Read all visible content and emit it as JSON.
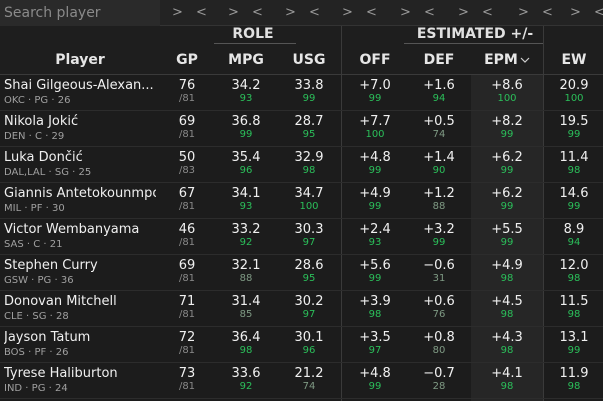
{
  "search": {
    "placeholder": "Search player"
  },
  "filter_arrows": [
    ">",
    "<"
  ],
  "groups": {
    "role": "ROLE",
    "estimated": "ESTIMATED +/-"
  },
  "columns": {
    "player": "Player",
    "gp": "GP",
    "mpg": "MPG",
    "usg": "USG",
    "off": "OFF",
    "def": "DEF",
    "epm": "EPM",
    "ew": "EW"
  },
  "sort_indicator_icon": "chevron-down-icon",
  "players": [
    {
      "name": "Shai Gilgeous-Alexan...",
      "meta": "OKC · PG · 26",
      "gp": "76",
      "gp_sub": "/81",
      "mpg": "34.2",
      "mpg_pct": "93",
      "usg": "33.8",
      "usg_pct": "99",
      "off": "+7.0",
      "off_pct": "99",
      "def": "+1.6",
      "def_pct": "94",
      "epm": "+8.6",
      "epm_pct": "100",
      "ew": "20.9",
      "ew_pct": "100"
    },
    {
      "name": "Nikola Jokić",
      "meta": "DEN · C · 29",
      "gp": "69",
      "gp_sub": "/81",
      "mpg": "36.8",
      "mpg_pct": "99",
      "usg": "28.7",
      "usg_pct": "95",
      "off": "+7.7",
      "off_pct": "100",
      "def": "+0.5",
      "def_pct": "74",
      "epm": "+8.2",
      "epm_pct": "99",
      "ew": "19.5",
      "ew_pct": "99"
    },
    {
      "name": "Luka Dončić",
      "meta": "DAL,LAL · SG · 25",
      "gp": "50",
      "gp_sub": "/83",
      "mpg": "35.4",
      "mpg_pct": "96",
      "usg": "32.9",
      "usg_pct": "98",
      "off": "+4.8",
      "off_pct": "99",
      "def": "+1.4",
      "def_pct": "90",
      "epm": "+6.2",
      "epm_pct": "99",
      "ew": "11.4",
      "ew_pct": "98"
    },
    {
      "name": "Giannis Antetokounmpo",
      "meta": "MIL · PF · 30",
      "gp": "67",
      "gp_sub": "/81",
      "mpg": "34.1",
      "mpg_pct": "93",
      "usg": "34.7",
      "usg_pct": "100",
      "off": "+4.9",
      "off_pct": "99",
      "def": "+1.2",
      "def_pct": "88",
      "epm": "+6.2",
      "epm_pct": "99",
      "ew": "14.6",
      "ew_pct": "99"
    },
    {
      "name": "Victor Wembanyama",
      "meta": "SAS · C · 21",
      "gp": "46",
      "gp_sub": "/81",
      "mpg": "33.2",
      "mpg_pct": "92",
      "usg": "30.3",
      "usg_pct": "97",
      "off": "+2.4",
      "off_pct": "93",
      "def": "+3.2",
      "def_pct": "99",
      "epm": "+5.5",
      "epm_pct": "99",
      "ew": "8.9",
      "ew_pct": "94"
    },
    {
      "name": "Stephen Curry",
      "meta": "GSW · PG · 36",
      "gp": "69",
      "gp_sub": "/81",
      "mpg": "32.1",
      "mpg_pct": "88",
      "usg": "28.6",
      "usg_pct": "95",
      "off": "+5.6",
      "off_pct": "99",
      "def": "−0.6",
      "def_pct": "31",
      "epm": "+4.9",
      "epm_pct": "98",
      "ew": "12.0",
      "ew_pct": "98"
    },
    {
      "name": "Donovan Mitchell",
      "meta": "CLE · SG · 28",
      "gp": "71",
      "gp_sub": "/81",
      "mpg": "31.4",
      "mpg_pct": "85",
      "usg": "30.2",
      "usg_pct": "97",
      "off": "+3.9",
      "off_pct": "98",
      "def": "+0.6",
      "def_pct": "76",
      "epm": "+4.5",
      "epm_pct": "98",
      "ew": "11.5",
      "ew_pct": "98"
    },
    {
      "name": "Jayson Tatum",
      "meta": "BOS · PF · 26",
      "gp": "72",
      "gp_sub": "/81",
      "mpg": "36.4",
      "mpg_pct": "98",
      "usg": "30.1",
      "usg_pct": "96",
      "off": "+3.5",
      "off_pct": "97",
      "def": "+0.8",
      "def_pct": "80",
      "epm": "+4.3",
      "epm_pct": "98",
      "ew": "13.1",
      "ew_pct": "99"
    },
    {
      "name": "Tyrese Haliburton",
      "meta": "IND · PG · 24",
      "gp": "73",
      "gp_sub": "/81",
      "mpg": "33.6",
      "mpg_pct": "92",
      "usg": "21.2",
      "usg_pct": "74",
      "off": "+4.8",
      "off_pct": "99",
      "def": "−0.7",
      "def_pct": "28",
      "epm": "+4.1",
      "epm_pct": "98",
      "ew": "11.9",
      "ew_pct": "98"
    }
  ],
  "colors": {
    "background": "#1c1c1c",
    "percentile_high": "#2bbf5a",
    "percentile_mid": "#7f9a84",
    "epm_column_highlight": "#262626"
  }
}
